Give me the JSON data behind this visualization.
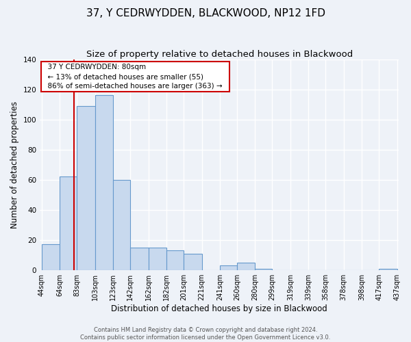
{
  "title": "37, Y CEDRWYDDEN, BLACKWOOD, NP12 1FD",
  "subtitle": "Size of property relative to detached houses in Blackwood",
  "xlabel": "Distribution of detached houses by size in Blackwood",
  "ylabel": "Number of detached properties",
  "footer_line1": "Contains HM Land Registry data © Crown copyright and database right 2024.",
  "footer_line2": "Contains public sector information licensed under the Open Government Licence v3.0.",
  "bin_edges": [
    44,
    64,
    83,
    103,
    123,
    142,
    162,
    182,
    201,
    221,
    241,
    260,
    280,
    299,
    319,
    339,
    358,
    378,
    398,
    417,
    437
  ],
  "bar_heights": [
    17,
    62,
    109,
    116,
    60,
    15,
    15,
    13,
    11,
    0,
    3,
    5,
    1,
    0,
    0,
    0,
    0,
    0,
    0,
    1
  ],
  "bar_color": "#c8d9ee",
  "bar_edge_color": "#6699cc",
  "property_line_x": 80,
  "property_line_color": "#cc0000",
  "ylim": [
    0,
    140
  ],
  "annotation_title": "37 Y CEDRWYDDEN: 80sqm",
  "annotation_line1": "← 13% of detached houses are smaller (55)",
  "annotation_line2": "86% of semi-detached houses are larger (363) →",
  "annotation_box_color": "#ffffff",
  "annotation_box_edge_color": "#cc0000",
  "bg_color": "#eef2f8",
  "grid_color": "#ffffff",
  "title_fontsize": 11,
  "subtitle_fontsize": 9.5,
  "axis_label_fontsize": 8.5,
  "tick_fontsize": 7,
  "annotation_fontsize": 7.5,
  "footer_fontsize": 6
}
